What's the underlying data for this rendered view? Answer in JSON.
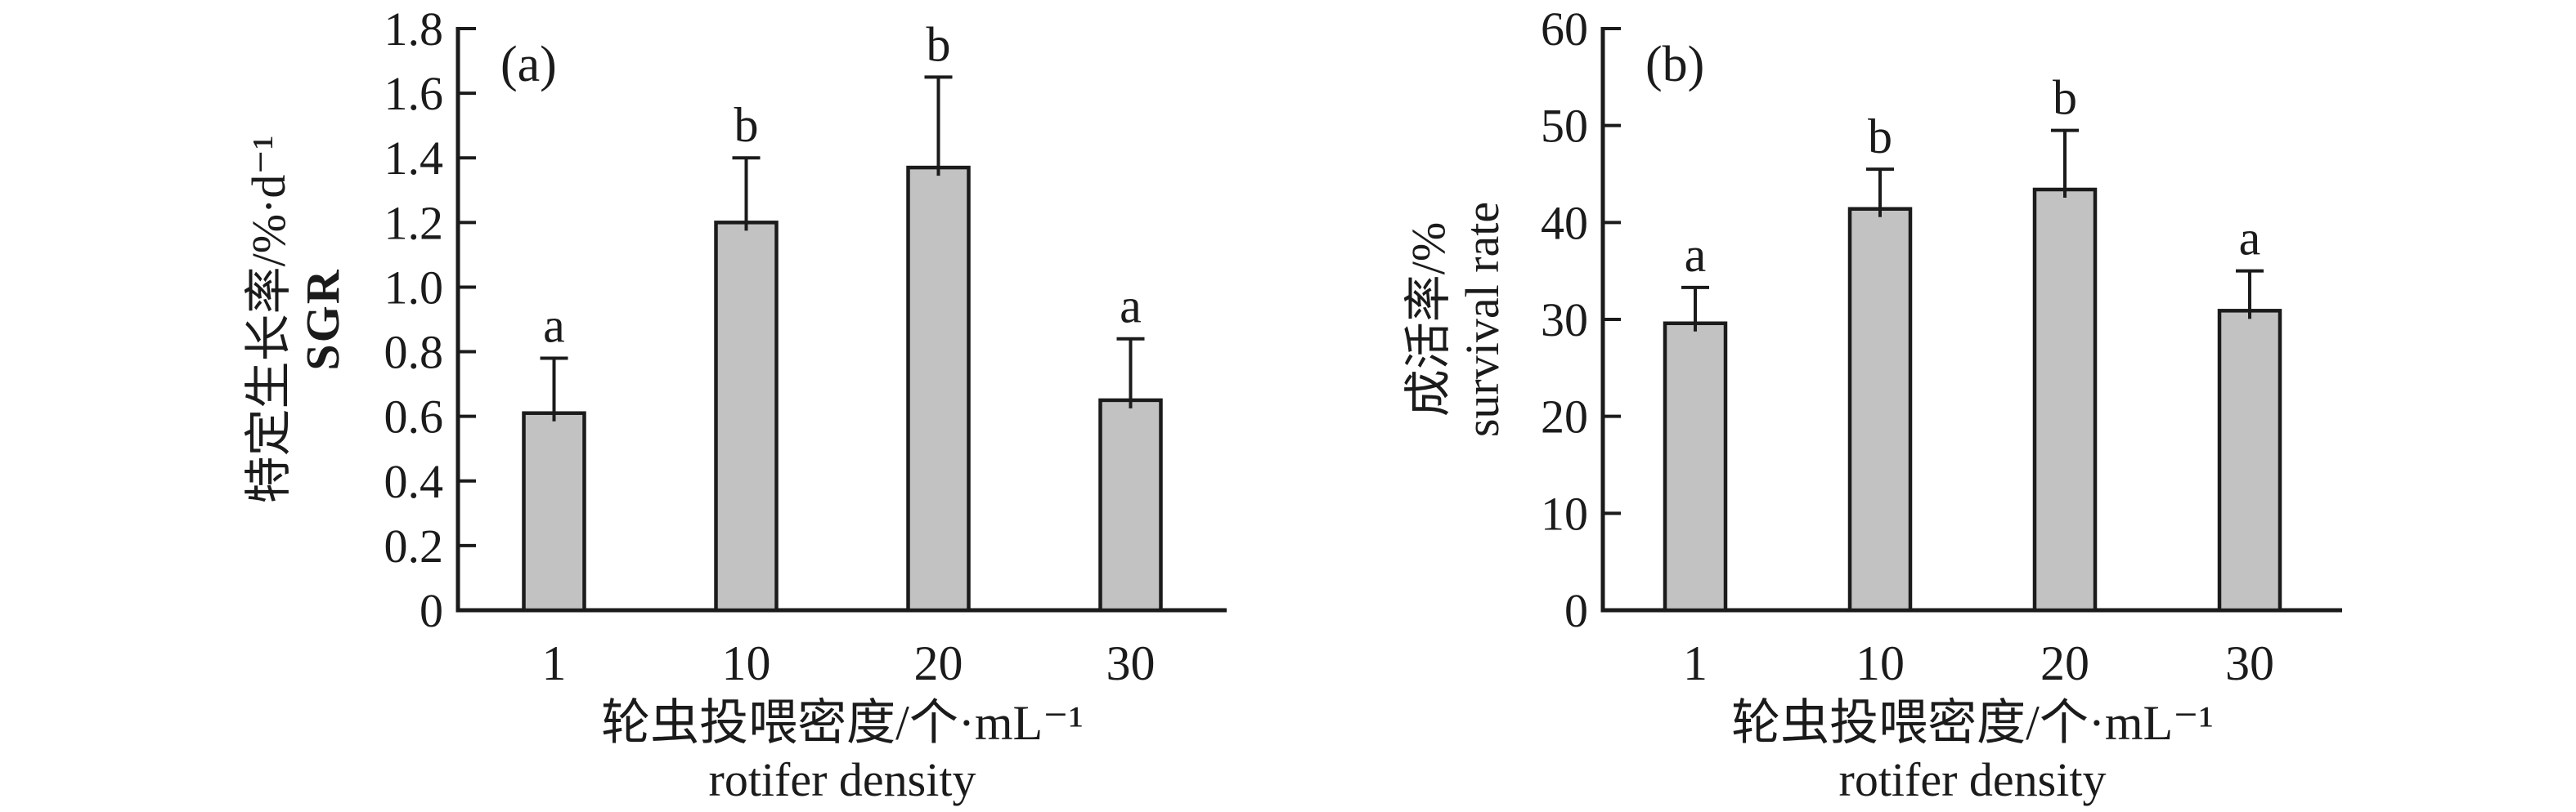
{
  "figure": {
    "background": "#ffffff",
    "bar_fill": "#c2c2c2",
    "line_color": "#1b1b1b",
    "panels": [
      {
        "label": "(a)",
        "y_title_zh": "特定生长率/%·d⁻¹",
        "y_title_en": "SGR",
        "x_title_zh": "轮虫投喂密度/个·mL⁻¹",
        "x_title_en": "rotifer density"
      },
      {
        "label": "(b)",
        "y_title_zh": "成活率/%",
        "y_title_en": "survival rate",
        "x_title_zh": "轮虫投喂密度/个·mL⁻¹",
        "x_title_en": "rotifer density"
      }
    ]
  },
  "chart_data": [
    {
      "type": "bar",
      "panel_label": "(a)",
      "categories": [
        "1",
        "10",
        "20",
        "30"
      ],
      "values": [
        0.61,
        1.2,
        1.37,
        0.65
      ],
      "errors_plus": [
        0.17,
        0.2,
        0.28,
        0.19
      ],
      "sig_letters": [
        "a",
        "b",
        "b",
        "a"
      ],
      "ylabel_zh": "特定生长率/%·d⁻¹",
      "ylabel_en": "SGR",
      "xlabel_zh": "轮虫投喂密度/个·mL⁻¹",
      "xlabel_en": "rotifer density",
      "ylim": [
        0,
        1.8
      ],
      "ytick_step": 0.2,
      "yticks": [
        "0",
        "0.2",
        "0.4",
        "0.6",
        "0.8",
        "1.0",
        "1.2",
        "1.4",
        "1.6",
        "1.8"
      ],
      "grid": false,
      "legend": null,
      "bar_color": "#c2c2c2",
      "error_bars": "upper only, capped"
    },
    {
      "type": "bar",
      "panel_label": "(b)",
      "categories": [
        "1",
        "10",
        "20",
        "30"
      ],
      "values": [
        29.6,
        41.4,
        43.4,
        30.9
      ],
      "errors_plus": [
        3.7,
        4.1,
        6.1,
        4.1
      ],
      "sig_letters": [
        "a",
        "b",
        "b",
        "a"
      ],
      "ylabel_zh": "成活率/%",
      "ylabel_en": "survival rate",
      "xlabel_zh": "轮虫投喂密度/个·mL⁻¹",
      "xlabel_en": "rotifer density",
      "ylim": [
        0,
        60
      ],
      "ytick_step": 10,
      "yticks": [
        "0",
        "10",
        "20",
        "30",
        "40",
        "50",
        "60"
      ],
      "grid": false,
      "legend": null,
      "bar_color": "#c2c2c2",
      "error_bars": "upper only, capped"
    }
  ]
}
